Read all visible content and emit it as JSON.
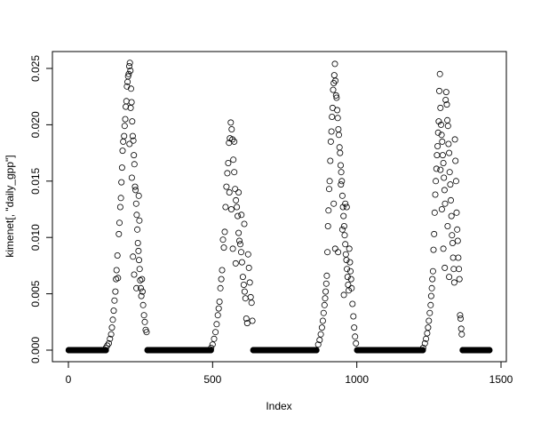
{
  "chart_data": {
    "type": "scatter",
    "title": "",
    "xlabel": "Index",
    "ylabel": "kimenet[, \"daily_gpp\"]",
    "xlim": [
      1,
      1460
    ],
    "ylim": [
      0,
      0.0255
    ],
    "x_ticks": [
      "0",
      "500",
      "1000",
      "1500"
    ],
    "y_ticks": [
      "0.000",
      "0.005",
      "0.010",
      "0.015",
      "0.020",
      "0.025"
    ],
    "grid": false,
    "marker": "open-circle",
    "color": "#000000",
    "zero_runs": [
      [
        1,
        130
      ],
      [
        274,
        494
      ],
      [
        641,
        860
      ],
      [
        1001,
        1229
      ],
      [
        1367,
        1460
      ]
    ],
    "points": [
      [
        130,
        0.0002
      ],
      [
        135,
        0.0004
      ],
      [
        140,
        0.0006
      ],
      [
        144,
        0.001
      ],
      [
        148,
        0.0014
      ],
      [
        151,
        0.002
      ],
      [
        154,
        0.0027
      ],
      [
        157,
        0.0035
      ],
      [
        160,
        0.0044
      ],
      [
        163,
        0.0052
      ],
      [
        165,
        0.0063
      ],
      [
        167,
        0.0071
      ],
      [
        170,
        0.0084
      ],
      [
        172,
        0.0064
      ],
      [
        175,
        0.0103
      ],
      [
        177,
        0.0113
      ],
      [
        180,
        0.0127
      ],
      [
        182,
        0.0135
      ],
      [
        184,
        0.0149
      ],
      [
        186,
        0.0162
      ],
      [
        188,
        0.0177
      ],
      [
        190,
        0.0185
      ],
      [
        193,
        0.019
      ],
      [
        195,
        0.0199
      ],
      [
        197,
        0.0205
      ],
      [
        199,
        0.0216
      ],
      [
        201,
        0.0221
      ],
      [
        203,
        0.0234
      ],
      [
        205,
        0.0238
      ],
      [
        207,
        0.0243
      ],
      [
        209,
        0.0245
      ],
      [
        211,
        0.0252
      ],
      [
        213,
        0.0255
      ],
      [
        215,
        0.0248
      ],
      [
        217,
        0.0232
      ],
      [
        219,
        0.022
      ],
      [
        221,
        0.0203
      ],
      [
        223,
        0.019
      ],
      [
        225,
        0.0186
      ],
      [
        227,
        0.0173
      ],
      [
        229,
        0.0165
      ],
      [
        231,
        0.0145
      ],
      [
        233,
        0.0142
      ],
      [
        235,
        0.013
      ],
      [
        237,
        0.012
      ],
      [
        239,
        0.0107
      ],
      [
        241,
        0.0095
      ],
      [
        243,
        0.0088
      ],
      [
        245,
        0.008
      ],
      [
        247,
        0.0072
      ],
      [
        249,
        0.0062
      ],
      [
        251,
        0.0055
      ],
      [
        253,
        0.0048
      ],
      [
        255,
        0.0063
      ],
      [
        257,
        0.0052
      ],
      [
        259,
        0.004
      ],
      [
        262,
        0.0031
      ],
      [
        265,
        0.0025
      ],
      [
        268,
        0.0018
      ],
      [
        271,
        0.0016
      ],
      [
        212,
        0.0183
      ],
      [
        220,
        0.0153
      ],
      [
        228,
        0.0067
      ],
      [
        236,
        0.0055
      ],
      [
        244,
        0.0137
      ],
      [
        246,
        0.0115
      ],
      [
        216,
        0.0215
      ],
      [
        224,
        0.0083
      ],
      [
        495,
        0.0002
      ],
      [
        500,
        0.0005
      ],
      [
        505,
        0.001
      ],
      [
        510,
        0.0016
      ],
      [
        514,
        0.0023
      ],
      [
        518,
        0.0031
      ],
      [
        521,
        0.0037
      ],
      [
        524,
        0.0043
      ],
      [
        527,
        0.0055
      ],
      [
        530,
        0.0063
      ],
      [
        533,
        0.0071
      ],
      [
        536,
        0.0098
      ],
      [
        539,
        0.0091
      ],
      [
        542,
        0.0105
      ],
      [
        545,
        0.0127
      ],
      [
        548,
        0.0145
      ],
      [
        551,
        0.0157
      ],
      [
        554,
        0.0166
      ],
      [
        557,
        0.0184
      ],
      [
        560,
        0.0188
      ],
      [
        563,
        0.0202
      ],
      [
        566,
        0.0196
      ],
      [
        569,
        0.0187
      ],
      [
        572,
        0.0169
      ],
      [
        575,
        0.0158
      ],
      [
        578,
        0.0143
      ],
      [
        581,
        0.0133
      ],
      [
        584,
        0.0127
      ],
      [
        587,
        0.0119
      ],
      [
        590,
        0.0104
      ],
      [
        593,
        0.0097
      ],
      [
        596,
        0.0094
      ],
      [
        599,
        0.0087
      ],
      [
        602,
        0.0078
      ],
      [
        605,
        0.0065
      ],
      [
        608,
        0.0058
      ],
      [
        611,
        0.0052
      ],
      [
        614,
        0.0046
      ],
      [
        617,
        0.0028
      ],
      [
        620,
        0.0024
      ],
      [
        623,
        0.0085
      ],
      [
        626,
        0.0073
      ],
      [
        629,
        0.006
      ],
      [
        632,
        0.0047
      ],
      [
        635,
        0.0042
      ],
      [
        638,
        0.0026
      ],
      [
        558,
        0.014
      ],
      [
        565,
        0.0125
      ],
      [
        570,
        0.009
      ],
      [
        580,
        0.0077
      ],
      [
        590,
        0.014
      ],
      [
        600,
        0.012
      ],
      [
        610,
        0.0112
      ],
      [
        575,
        0.0185
      ],
      [
        866,
        0.0005
      ],
      [
        871,
        0.0009
      ],
      [
        875,
        0.0014
      ],
      [
        879,
        0.002
      ],
      [
        882,
        0.0026
      ],
      [
        885,
        0.0033
      ],
      [
        888,
        0.004
      ],
      [
        890,
        0.0046
      ],
      [
        892,
        0.0052
      ],
      [
        894,
        0.0059
      ],
      [
        896,
        0.0066
      ],
      [
        898,
        0.0087
      ],
      [
        900,
        0.011
      ],
      [
        902,
        0.0124
      ],
      [
        904,
        0.0143
      ],
      [
        906,
        0.015
      ],
      [
        908,
        0.0168
      ],
      [
        910,
        0.0185
      ],
      [
        912,
        0.0194
      ],
      [
        914,
        0.0207
      ],
      [
        916,
        0.0215
      ],
      [
        918,
        0.0231
      ],
      [
        920,
        0.0237
      ],
      [
        922,
        0.0244
      ],
      [
        924,
        0.0254
      ],
      [
        926,
        0.0239
      ],
      [
        928,
        0.0226
      ],
      [
        930,
        0.0224
      ],
      [
        932,
        0.0213
      ],
      [
        934,
        0.0206
      ],
      [
        936,
        0.0196
      ],
      [
        938,
        0.0191
      ],
      [
        940,
        0.018
      ],
      [
        942,
        0.0175
      ],
      [
        944,
        0.0164
      ],
      [
        946,
        0.0158
      ],
      [
        948,
        0.015
      ],
      [
        950,
        0.0137
      ],
      [
        952,
        0.0127
      ],
      [
        954,
        0.0119
      ],
      [
        956,
        0.011
      ],
      [
        958,
        0.0102
      ],
      [
        960,
        0.0094
      ],
      [
        962,
        0.0085
      ],
      [
        964,
        0.008
      ],
      [
        966,
        0.0072
      ],
      [
        968,
        0.0065
      ],
      [
        970,
        0.0058
      ],
      [
        972,
        0.0053
      ],
      [
        974,
        0.009
      ],
      [
        976,
        0.0078
      ],
      [
        978,
        0.007
      ],
      [
        980,
        0.0063
      ],
      [
        982,
        0.0055
      ],
      [
        985,
        0.0041
      ],
      [
        988,
        0.003
      ],
      [
        991,
        0.002
      ],
      [
        994,
        0.0012
      ],
      [
        997,
        0.0006
      ],
      [
        920,
        0.013
      ],
      [
        925,
        0.009
      ],
      [
        935,
        0.0087
      ],
      [
        945,
        0.0147
      ],
      [
        950,
        0.0107
      ],
      [
        960,
        0.013
      ],
      [
        965,
        0.0127
      ],
      [
        955,
        0.0049
      ],
      [
        1230,
        0.0002
      ],
      [
        1236,
        0.0006
      ],
      [
        1240,
        0.001
      ],
      [
        1244,
        0.0015
      ],
      [
        1247,
        0.002
      ],
      [
        1250,
        0.0026
      ],
      [
        1253,
        0.0033
      ],
      [
        1256,
        0.004
      ],
      [
        1258,
        0.0048
      ],
      [
        1260,
        0.0055
      ],
      [
        1262,
        0.0063
      ],
      [
        1264,
        0.007
      ],
      [
        1266,
        0.0089
      ],
      [
        1268,
        0.0103
      ],
      [
        1270,
        0.0122
      ],
      [
        1272,
        0.0138
      ],
      [
        1274,
        0.015
      ],
      [
        1276,
        0.0161
      ],
      [
        1278,
        0.0173
      ],
      [
        1280,
        0.0181
      ],
      [
        1282,
        0.0193
      ],
      [
        1284,
        0.0203
      ],
      [
        1286,
        0.023
      ],
      [
        1288,
        0.0245
      ],
      [
        1290,
        0.0215
      ],
      [
        1292,
        0.02
      ],
      [
        1294,
        0.0191
      ],
      [
        1296,
        0.0185
      ],
      [
        1298,
        0.0173
      ],
      [
        1300,
        0.0166
      ],
      [
        1302,
        0.0153
      ],
      [
        1304,
        0.0142
      ],
      [
        1306,
        0.013
      ],
      [
        1308,
        0.0222
      ],
      [
        1310,
        0.0229
      ],
      [
        1312,
        0.0218
      ],
      [
        1314,
        0.0204
      ],
      [
        1316,
        0.0199
      ],
      [
        1318,
        0.0183
      ],
      [
        1320,
        0.0175
      ],
      [
        1322,
        0.0158
      ],
      [
        1324,
        0.0147
      ],
      [
        1326,
        0.0133
      ],
      [
        1328,
        0.0119
      ],
      [
        1330,
        0.0102
      ],
      [
        1332,
        0.0095
      ],
      [
        1334,
        0.0082
      ],
      [
        1336,
        0.0072
      ],
      [
        1338,
        0.006
      ],
      [
        1340,
        0.0187
      ],
      [
        1342,
        0.0168
      ],
      [
        1344,
        0.015
      ],
      [
        1346,
        0.0122
      ],
      [
        1348,
        0.0107
      ],
      [
        1350,
        0.0097
      ],
      [
        1352,
        0.0082
      ],
      [
        1354,
        0.0072
      ],
      [
        1356,
        0.0063
      ],
      [
        1358,
        0.0031
      ],
      [
        1360,
        0.0028
      ],
      [
        1362,
        0.0019
      ],
      [
        1364,
        0.0014
      ],
      [
        1290,
        0.016
      ],
      [
        1295,
        0.0125
      ],
      [
        1300,
        0.009
      ],
      [
        1305,
        0.0073
      ],
      [
        1315,
        0.011
      ],
      [
        1320,
        0.0065
      ]
    ]
  }
}
